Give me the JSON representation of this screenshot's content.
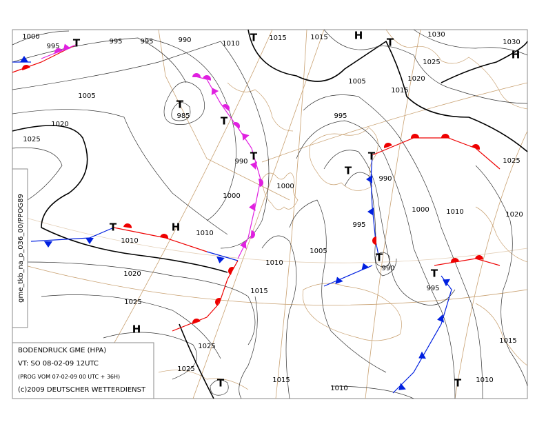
{
  "side_label": "gme_tkb_na_p_036_00/PPOG89",
  "info_box": {
    "lines": [
      "BODENDRUCK GME (HPA)",
      "VT: SO 08-02-09 12UTC",
      "(PROG VOM 07-02-09 00 UTC + 36H)",
      "(c)2009 DEUTSCHER WETTERDIENST"
    ]
  },
  "isobar_labels": [
    1000,
    995,
    995,
    995,
    990,
    1010,
    1015,
    1015,
    1030,
    1030,
    1025,
    1020,
    1015,
    1005,
    995,
    1005,
    985,
    1020,
    1025,
    990,
    990,
    1000,
    1000,
    995,
    1000,
    1010,
    1020,
    1025,
    1010,
    1010,
    1005,
    1010,
    990,
    1020,
    1015,
    995,
    1025,
    1025,
    1025,
    1015,
    1010,
    1010,
    1015
  ],
  "pressure_centers": [
    "T",
    "T",
    "H",
    "T",
    "H",
    "T",
    "T",
    "T",
    "T",
    "T",
    "T",
    "H",
    "T",
    "T",
    "H",
    "T",
    "T"
  ]
}
